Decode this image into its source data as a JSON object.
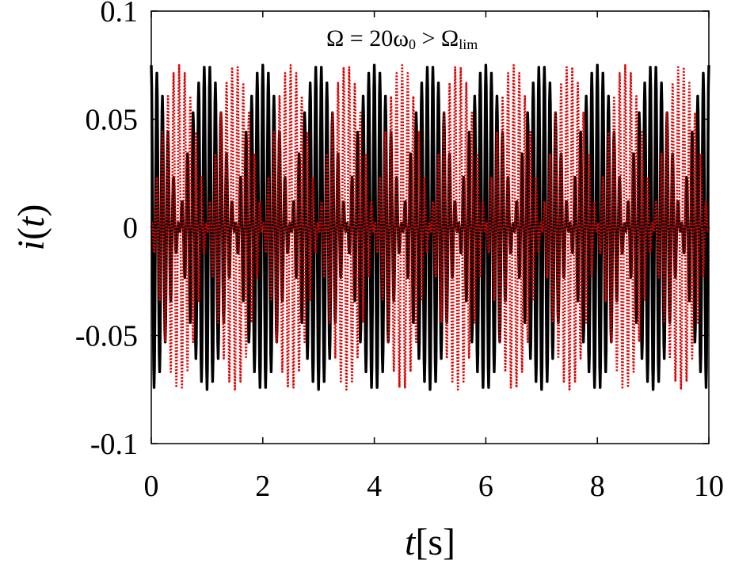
{
  "chart_data": {
    "type": "line",
    "title": "",
    "annotation": {
      "prefix": "Ω = 20ω",
      "sub0": "0",
      "mid": " > Ω",
      "sub1": "lim"
    },
    "xlabel": {
      "main": "t",
      "unit": "[s]"
    },
    "ylabel": {
      "var": "i",
      "open": "(",
      "arg": "t",
      "close": ")"
    },
    "xlim": [
      0,
      10
    ],
    "ylim": [
      -0.1,
      0.1
    ],
    "xticks": [
      0,
      2,
      4,
      6,
      8,
      10
    ],
    "xtick_labels": [
      "0",
      "2",
      "4",
      "6",
      "8",
      "10"
    ],
    "yticks": [
      0.1,
      0.05,
      0,
      -0.05,
      -0.1
    ],
    "ytick_labels": [
      "0.1",
      "0.05",
      "0",
      "-0.05",
      "-0.1"
    ],
    "grid": false,
    "legend": "none",
    "series": [
      {
        "color": "#000000",
        "style": "solid",
        "amplitude": 0.075,
        "carrier_cycles_per_second": 10,
        "envelope_cycles_per_second": 0.5,
        "envelope_phase_s": 0
      },
      {
        "color": "#e00000",
        "style": "dotted",
        "amplitude": 0.075,
        "carrier_cycles_per_second": 10,
        "envelope_cycles_per_second": 0.5,
        "envelope_phase_s": 0.5
      }
    ]
  }
}
